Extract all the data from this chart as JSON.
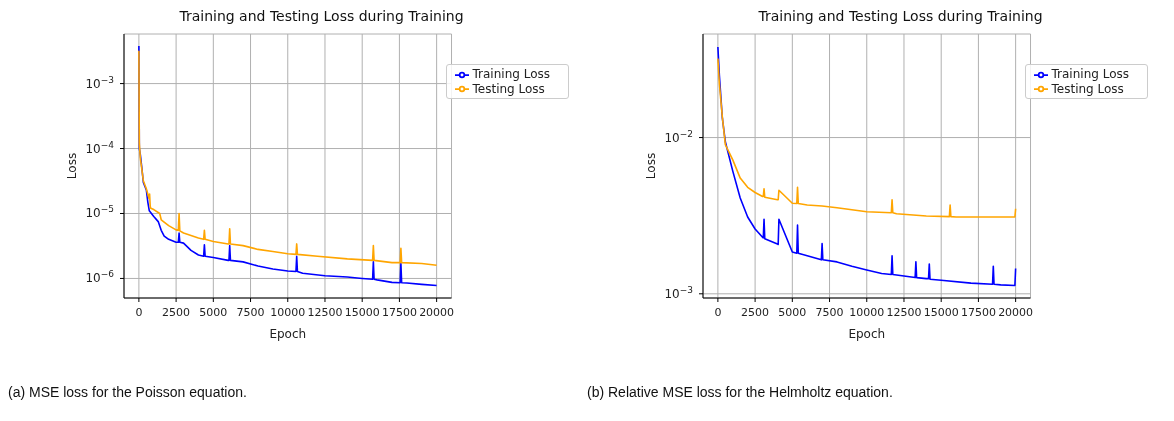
{
  "chart_data": [
    {
      "type": "line",
      "title": "Training and Testing Loss during Training",
      "xlabel": "Epoch",
      "ylabel": "Loss",
      "log": "y",
      "grid": true,
      "legend": "top right",
      "xlim": [
        -1000,
        21000
      ],
      "xticks": [
        0,
        2500,
        5000,
        7500,
        10000,
        12500,
        15000,
        17500,
        20000
      ],
      "ylim": [
        5e-07,
        0.0058
      ],
      "yticks": [
        {
          "value": 1e-06,
          "label": "10$^{−6}$"
        },
        {
          "value": 1e-05,
          "label": "10$^{−5}$"
        },
        {
          "value": 0.0001,
          "label": "10$^{−4}$"
        },
        {
          "value": 0.001,
          "label": "10$^{−3}$"
        }
      ],
      "annotations": [
        "(a) MSE loss for the Poisson equation."
      ],
      "series": [
        {
          "name": "Training Loss",
          "color": "#0000ff",
          "x": [
            0,
            30,
            100,
            200,
            300,
            500,
            600,
            700,
            1000,
            1300,
            1500,
            1700,
            2000,
            2500,
            2650,
            2700,
            2750,
            3000,
            3500,
            4000,
            4350,
            4400,
            4450,
            5000,
            6000,
            6050,
            6100,
            6150,
            7000,
            8000,
            9000,
            10000,
            10550,
            10600,
            10650,
            11000,
            12500,
            14000,
            15000,
            15700,
            15750,
            15800,
            16000,
            17000,
            17550,
            17600,
            17650,
            18000,
            19000,
            20000
          ],
          "values": [
            0.0038,
            0.0001,
            8e-05,
            5e-05,
            3e-05,
            2.3e-05,
            1.5e-05,
            1.1e-05,
            9e-06,
            7.5e-06,
            5.5e-06,
            4.5e-06,
            4e-06,
            3.6e-06,
            3.6e-06,
            5e-06,
            3.6e-06,
            3.5e-06,
            2.7e-06,
            2.3e-06,
            2.2e-06,
            3.3e-06,
            2.2e-06,
            2.1e-06,
            1.9e-06,
            1.9e-06,
            3.2e-06,
            1.9e-06,
            1.8e-06,
            1.55e-06,
            1.4e-06,
            1.3e-06,
            1.28e-06,
            2.2e-06,
            1.28e-06,
            1.2e-06,
            1.1e-06,
            1.05e-06,
            1e-06,
            9.7e-07,
            1.8e-06,
            9.7e-07,
            9.5e-07,
            8.7e-07,
            8.6e-07,
            1.7e-06,
            8.6e-07,
            8.5e-07,
            8.1e-07,
            7.8e-07
          ]
        },
        {
          "name": "Testing Loss",
          "color": "#ffa500",
          "x": [
            0,
            30,
            100,
            300,
            500,
            680,
            720,
            760,
            800,
            1000,
            1400,
            1500,
            2000,
            2500,
            2650,
            2700,
            2750,
            3000,
            4000,
            4350,
            4400,
            4450,
            5000,
            6000,
            6050,
            6100,
            6150,
            7000,
            8000,
            9000,
            10000,
            10550,
            10600,
            10650,
            12000,
            14000,
            15700,
            15750,
            15800,
            17000,
            17550,
            17600,
            17650,
            19000,
            20000
          ],
          "values": [
            0.0032,
            0.00012,
            7e-05,
            3.2e-05,
            2.4e-05,
            1.7e-05,
            2e-05,
            1.3e-05,
            1.2e-05,
            1.15e-05,
            1e-05,
            8e-06,
            6.5e-06,
            5.6e-06,
            5.5e-06,
            1e-05,
            5.4e-06,
            5e-06,
            4.2e-06,
            4e-06,
            5.5e-06,
            4e-06,
            3.7e-06,
            3.4e-06,
            3.4e-06,
            5.8e-06,
            3.4e-06,
            3.2e-06,
            2.8e-06,
            2.6e-06,
            2.4e-06,
            2.35e-06,
            3.4e-06,
            2.35e-06,
            2.2e-06,
            2e-06,
            1.9e-06,
            3.2e-06,
            1.9e-06,
            1.75e-06,
            1.75e-06,
            2.9e-06,
            1.75e-06,
            1.7e-06,
            1.6e-06
          ]
        }
      ]
    },
    {
      "type": "line",
      "title": "Training and Testing Loss during Training",
      "xlabel": "Epoch",
      "ylabel": "Loss",
      "log": "y",
      "grid": true,
      "legend": "top right",
      "xlim": [
        -1000,
        21000
      ],
      "xticks": [
        0,
        2500,
        5000,
        7500,
        10000,
        12500,
        15000,
        17500,
        20000
      ],
      "ylim": [
        0.00094,
        0.046
      ],
      "yticks": [
        {
          "value": 0.001,
          "label": "10$^{−3}$"
        },
        {
          "value": 0.01,
          "label": "10$^{−2}$"
        }
      ],
      "annotations": [
        "(b) Relative MSE loss for the Helmholtz equation."
      ],
      "series": [
        {
          "name": "Training Loss",
          "color": "#0000ff",
          "x": [
            0,
            100,
            300,
            500,
            1000,
            1500,
            2000,
            2500,
            3000,
            3050,
            3100,
            3150,
            4000,
            4050,
            4100,
            5000,
            5300,
            5350,
            5400,
            6000,
            6950,
            7000,
            7050,
            8000,
            9000,
            10000,
            11000,
            11650,
            11700,
            11750,
            12500,
            13250,
            13300,
            13350,
            14000,
            14150,
            14200,
            14250,
            15000,
            17000,
            18450,
            18500,
            18550,
            19000,
            19950,
            20000
          ],
          "values": [
            0.038,
            0.025,
            0.0133,
            0.0094,
            0.0061,
            0.0041,
            0.0031,
            0.0026,
            0.0023,
            0.00228,
            0.003,
            0.00225,
            0.00208,
            0.00207,
            0.003,
            0.00185,
            0.00182,
            0.00275,
            0.00182,
            0.00175,
            0.00165,
            0.0021,
            0.00165,
            0.0016,
            0.0015,
            0.00142,
            0.00135,
            0.00133,
            0.00175,
            0.00133,
            0.0013,
            0.00127,
            0.0016,
            0.00127,
            0.00125,
            0.00125,
            0.00155,
            0.00124,
            0.00122,
            0.00117,
            0.00115,
            0.0015,
            0.00115,
            0.00114,
            0.00113,
            0.00145
          ]
        },
        {
          "name": "Testing Loss",
          "color": "#ffa500",
          "x": [
            0,
            100,
            300,
            500,
            1000,
            1500,
            2000,
            2500,
            3000,
            3050,
            3100,
            3150,
            4000,
            4050,
            4100,
            5000,
            5300,
            5350,
            5400,
            6000,
            7000,
            8000,
            9000,
            10000,
            11650,
            11700,
            11750,
            12000,
            14000,
            15550,
            15600,
            15650,
            16000,
            18000,
            19950,
            20000
          ],
          "values": [
            0.032,
            0.022,
            0.0135,
            0.009,
            0.0072,
            0.0055,
            0.0048,
            0.00445,
            0.0042,
            0.0042,
            0.0047,
            0.00415,
            0.004,
            0.004,
            0.0046,
            0.0038,
            0.00378,
            0.0048,
            0.00378,
            0.0037,
            0.00365,
            0.00355,
            0.00345,
            0.00335,
            0.0033,
            0.004,
            0.0033,
            0.00325,
            0.00315,
            0.00312,
            0.0037,
            0.00312,
            0.0031,
            0.0031,
            0.0031,
            0.0035
          ]
        }
      ]
    }
  ]
}
